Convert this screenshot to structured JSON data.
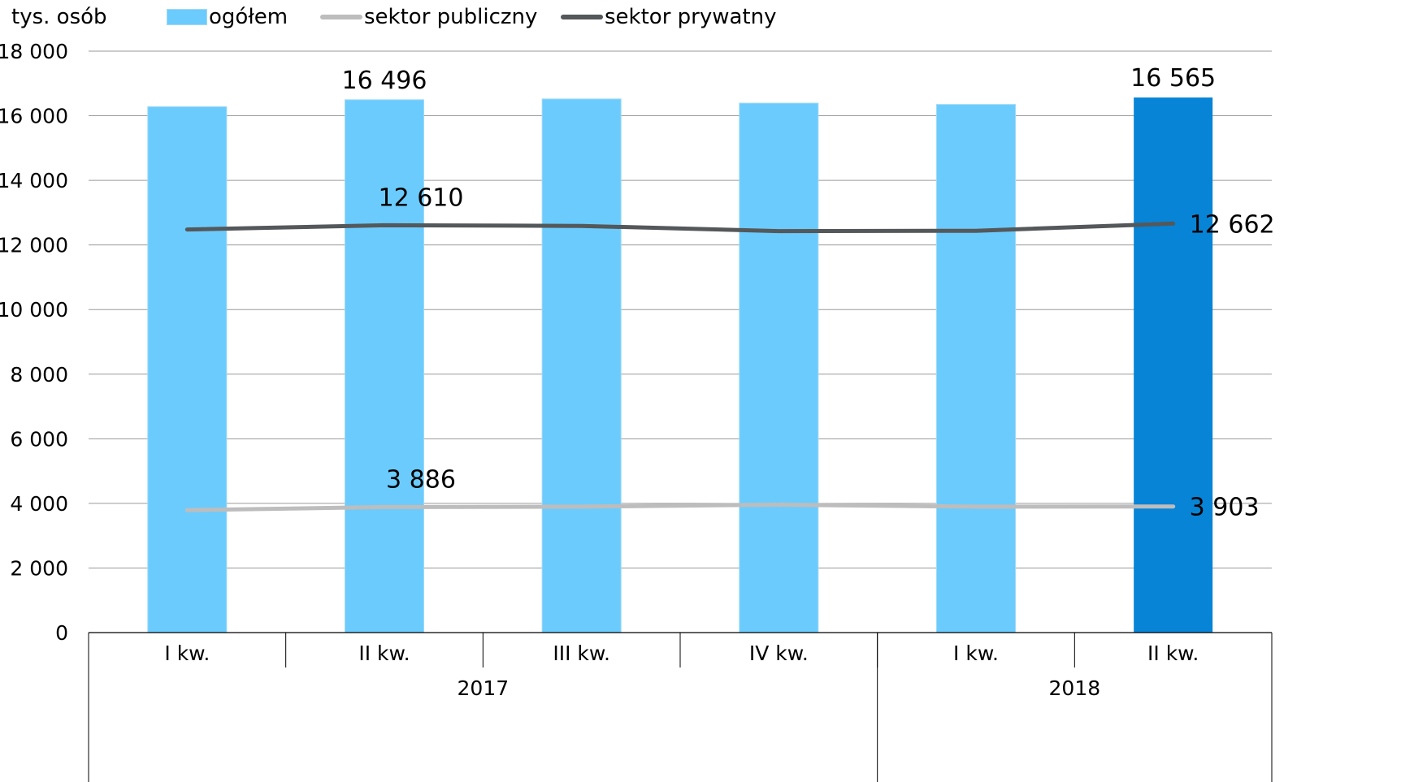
{
  "unit_label": "tys. osób",
  "legend": [
    {
      "label": "ogółem",
      "kind": "bar",
      "color": "#6bcbfd"
    },
    {
      "label": "sektor publiczny",
      "kind": "line",
      "color": "#bdbdbd"
    },
    {
      "label": "sektor prywatny",
      "kind": "line",
      "color": "#54585a"
    }
  ],
  "chart_data": {
    "type": "bar",
    "categories": [
      "I kw.",
      "II kw.",
      "III kw.",
      "IV kw.",
      "I kw.",
      "II kw."
    ],
    "category_groups": [
      {
        "label": "2017",
        "span": 4
      },
      {
        "label": "2018",
        "span": 2
      }
    ],
    "ylim": [
      0,
      18000
    ],
    "y_ticks": [
      {
        "value": 0,
        "label": "0"
      },
      {
        "value": 2000,
        "label": "2 000"
      },
      {
        "value": 4000,
        "label": "4 000"
      },
      {
        "value": 6000,
        "label": "6 000"
      },
      {
        "value": 8000,
        "label": "8 000"
      },
      {
        "value": 10000,
        "label": "10 000"
      },
      {
        "value": 12000,
        "label": "12 000"
      },
      {
        "value": 14000,
        "label": "14 000"
      },
      {
        "value": 16000,
        "label": "16 000"
      },
      {
        "value": 18000,
        "label": "18 000"
      }
    ],
    "grid": true,
    "legend_position": "top",
    "series": [
      {
        "name": "ogółem",
        "type": "bar",
        "color": "#6bcbfd",
        "highlight_color": "#0784d6",
        "highlight_index": 5,
        "values": [
          16280,
          16496,
          16520,
          16390,
          16350,
          16565
        ],
        "data_labels": [
          {
            "index": 1,
            "text": "16 496"
          },
          {
            "index": 5,
            "text": "16 565"
          }
        ]
      },
      {
        "name": "sektor prywatny",
        "type": "line",
        "color": "#54585a",
        "values": [
          12480,
          12610,
          12590,
          12430,
          12440,
          12662
        ],
        "data_labels": [
          {
            "index": 1,
            "text": "12 610"
          },
          {
            "index": 5,
            "text": "12 662"
          }
        ]
      },
      {
        "name": "sektor publiczny",
        "type": "line",
        "color": "#bdbdbd",
        "values": [
          3790,
          3886,
          3900,
          3960,
          3900,
          3903
        ],
        "data_labels": [
          {
            "index": 1,
            "text": "3 886"
          },
          {
            "index": 5,
            "text": "3 903"
          }
        ]
      }
    ]
  }
}
